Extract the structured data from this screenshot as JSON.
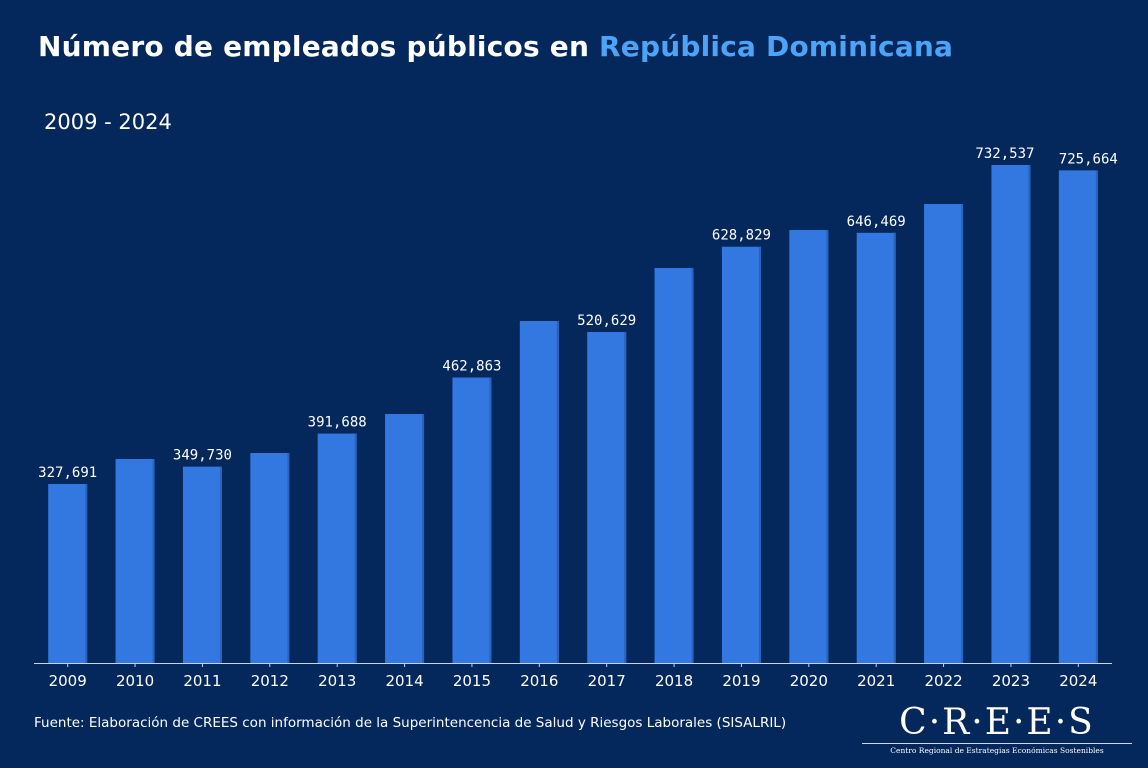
{
  "title": {
    "part1": "Número de empleados públicos en ",
    "highlight": "República Dominicana"
  },
  "subtitle": "2009 - 2024",
  "source": "Fuente: Elaboración de CREES con información de la Superintencencia de Salud y Riesgos Laborales (SISALRIL)",
  "logo": {
    "name": "C·R·E·E·S",
    "tagline": "Centro Regional de Estrategias Económicas Sostenibles"
  },
  "colors": {
    "background": "#04275c",
    "bar": "#3278e0",
    "highlight": "#4da3f5"
  },
  "chart_data": {
    "type": "bar",
    "title": "Número de empleados públicos en República Dominicana",
    "subtitle": "2009 - 2024",
    "xlabel": "",
    "ylabel": "",
    "categories": [
      "2009",
      "2010",
      "2011",
      "2012",
      "2013",
      "2014",
      "2015",
      "2016",
      "2017",
      "2018",
      "2019",
      "2020",
      "2021",
      "2022",
      "2023",
      "2024"
    ],
    "values": [
      327691,
      359400,
      349730,
      367000,
      391688,
      416500,
      462863,
      534500,
      520629,
      601800,
      628829,
      650000,
      646469,
      683000,
      732537,
      725664
    ],
    "labels": [
      "327,691",
      "",
      "349,730",
      "",
      "391,688",
      "",
      "462,863",
      "",
      "520,629",
      "",
      "628,829",
      "",
      "646,469",
      "",
      "732,537",
      "725,664"
    ],
    "ylim": [
      100000,
      760000
    ],
    "grid": false,
    "legend": "none"
  }
}
